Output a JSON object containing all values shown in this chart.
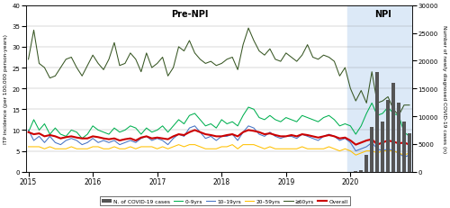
{
  "title_prenpi": "Pre-NPI",
  "title_npi": "NPI",
  "ylabel_left": "ITP incidence (per 100,000 person-years)",
  "ylabel_right": "Number of newly diagnosed COVID-19 cases (n)",
  "ylim_left": [
    0,
    40
  ],
  "ylim_right": [
    0,
    30000
  ],
  "yticks_left": [
    0,
    5,
    10,
    15,
    20,
    25,
    30,
    35,
    40
  ],
  "yticks_right": [
    0,
    5000,
    10000,
    15000,
    20000,
    25000,
    30000
  ],
  "npi_start_month": 60,
  "total_months": 72,
  "colors": {
    "0_9yrs": "#00b050",
    "10_19yrs": "#4472c4",
    "20_59yrs": "#ffc000",
    "ge60yrs": "#375623",
    "overall": "#cc0000",
    "covid_bars": "#555555",
    "npi_shade": "#dce9f7"
  },
  "x_tick_labels": [
    "2015",
    "2016",
    "2017",
    "2018",
    "2019",
    "2020"
  ],
  "x_tick_positions": [
    0,
    12,
    24,
    36,
    48,
    60
  ],
  "overall": [
    9.5,
    9.0,
    9.2,
    8.5,
    8.8,
    8.5,
    8.0,
    8.3,
    8.5,
    8.2,
    8.0,
    8.0,
    8.5,
    8.3,
    8.0,
    7.8,
    8.0,
    7.5,
    7.8,
    8.0,
    7.5,
    8.2,
    8.5,
    8.0,
    8.2,
    8.0,
    7.8,
    8.5,
    9.0,
    8.8,
    9.5,
    10.0,
    9.5,
    9.0,
    8.8,
    8.5,
    8.5,
    8.8,
    9.0,
    8.5,
    9.5,
    10.0,
    9.8,
    9.5,
    9.0,
    9.2,
    8.8,
    8.5,
    8.5,
    8.8,
    8.5,
    9.0,
    8.8,
    8.5,
    8.2,
    8.5,
    8.8,
    8.5,
    8.0,
    8.2,
    7.5,
    6.5,
    7.0,
    7.5,
    7.8,
    6.5,
    7.0,
    7.5,
    7.2,
    6.8,
    7.0,
    6.5
  ],
  "age_0_9": [
    9.5,
    12.5,
    10.0,
    11.5,
    9.0,
    10.5,
    9.0,
    8.5,
    10.0,
    9.5,
    8.0,
    9.0,
    11.0,
    10.0,
    9.5,
    9.0,
    10.5,
    9.5,
    10.0,
    11.0,
    10.5,
    9.0,
    10.5,
    9.5,
    10.0,
    11.0,
    9.5,
    11.0,
    12.5,
    11.5,
    13.5,
    14.0,
    12.5,
    11.0,
    11.5,
    10.5,
    12.5,
    11.5,
    12.0,
    11.0,
    13.5,
    15.5,
    15.0,
    13.0,
    12.5,
    13.5,
    12.5,
    12.0,
    13.0,
    12.5,
    12.0,
    13.5,
    13.0,
    12.5,
    12.0,
    13.0,
    13.5,
    12.5,
    11.0,
    11.5,
    11.0,
    9.0,
    11.0,
    14.0,
    16.5,
    13.5,
    14.0,
    15.5,
    14.0,
    13.5,
    9.5,
    8.5
  ],
  "age_10_19": [
    10.0,
    7.5,
    8.5,
    7.0,
    8.5,
    7.0,
    6.5,
    7.5,
    8.0,
    7.5,
    6.5,
    7.0,
    8.0,
    7.0,
    7.5,
    7.0,
    7.5,
    6.5,
    7.0,
    7.5,
    7.0,
    8.0,
    8.5,
    7.5,
    8.0,
    7.5,
    6.5,
    8.0,
    9.0,
    8.5,
    10.5,
    11.0,
    9.5,
    8.0,
    8.5,
    7.5,
    8.5,
    8.5,
    9.0,
    7.5,
    9.5,
    11.0,
    10.5,
    9.0,
    8.5,
    9.5,
    8.5,
    8.0,
    8.5,
    8.5,
    8.0,
    9.0,
    8.5,
    8.0,
    7.5,
    8.5,
    9.0,
    8.5,
    7.5,
    8.0,
    7.0,
    5.0,
    5.5,
    6.0,
    7.0,
    5.5,
    5.0,
    5.5,
    5.0,
    4.5,
    3.5,
    4.0
  ],
  "age_20_59": [
    6.0,
    6.0,
    6.0,
    5.5,
    6.0,
    5.5,
    5.5,
    5.5,
    6.0,
    5.5,
    5.5,
    5.5,
    6.0,
    6.0,
    5.5,
    5.5,
    6.0,
    5.5,
    5.5,
    6.0,
    5.5,
    6.0,
    6.0,
    6.0,
    5.5,
    6.0,
    5.5,
    6.0,
    6.5,
    6.0,
    6.5,
    6.5,
    6.0,
    5.5,
    5.5,
    5.5,
    6.0,
    6.0,
    6.5,
    5.5,
    6.5,
    6.5,
    6.5,
    6.0,
    5.5,
    6.0,
    5.5,
    5.5,
    5.5,
    5.5,
    5.5,
    6.0,
    5.5,
    5.5,
    5.5,
    5.5,
    6.0,
    5.5,
    5.0,
    5.5,
    5.0,
    4.0,
    4.5,
    5.0,
    5.0,
    4.5,
    5.0,
    5.0,
    5.0,
    4.5,
    4.0,
    4.5
  ],
  "age_ge60": [
    27.0,
    34.0,
    26.0,
    25.0,
    22.5,
    23.0,
    25.0,
    27.0,
    27.5,
    25.0,
    23.0,
    25.5,
    28.0,
    26.0,
    24.5,
    27.0,
    31.0,
    25.5,
    26.0,
    28.5,
    27.0,
    24.0,
    28.5,
    25.0,
    26.0,
    27.5,
    23.0,
    25.0,
    30.0,
    29.0,
    31.5,
    28.5,
    27.0,
    26.0,
    26.5,
    25.5,
    26.0,
    27.0,
    27.5,
    24.5,
    30.5,
    34.5,
    31.5,
    29.0,
    28.0,
    29.5,
    27.0,
    26.5,
    28.5,
    27.5,
    26.5,
    28.0,
    30.5,
    27.5,
    27.0,
    28.0,
    27.5,
    26.5,
    23.0,
    25.0,
    20.0,
    17.0,
    19.5,
    16.5,
    24.0,
    16.5,
    17.0,
    18.0,
    15.0,
    13.5,
    16.0,
    16.0
  ],
  "covid_cases": [
    0,
    0,
    0,
    0,
    0,
    0,
    0,
    0,
    0,
    0,
    0,
    0,
    0,
    0,
    0,
    0,
    0,
    0,
    0,
    0,
    0,
    0,
    0,
    0,
    0,
    0,
    0,
    0,
    0,
    0,
    0,
    0,
    0,
    0,
    0,
    0,
    0,
    0,
    0,
    0,
    0,
    0,
    0,
    0,
    0,
    0,
    0,
    0,
    0,
    0,
    0,
    0,
    0,
    0,
    0,
    0,
    0,
    0,
    0,
    0,
    0,
    50,
    300,
    3000,
    8000,
    18000,
    9000,
    13000,
    16000,
    12500,
    9000,
    7000
  ],
  "legend_items": [
    {
      "label": "N. of COVID-19 cases",
      "color": "#555555",
      "type": "bar"
    },
    {
      "label": "0–9yrs",
      "color": "#00b050",
      "type": "line"
    },
    {
      "label": "10–19yrs",
      "color": "#4472c4",
      "type": "line"
    },
    {
      "label": "20–59yrs",
      "color": "#ffc000",
      "type": "line"
    },
    {
      "label": "≥60yrs",
      "color": "#375623",
      "type": "line"
    },
    {
      "label": "Overall",
      "color": "#cc0000",
      "type": "line"
    }
  ]
}
